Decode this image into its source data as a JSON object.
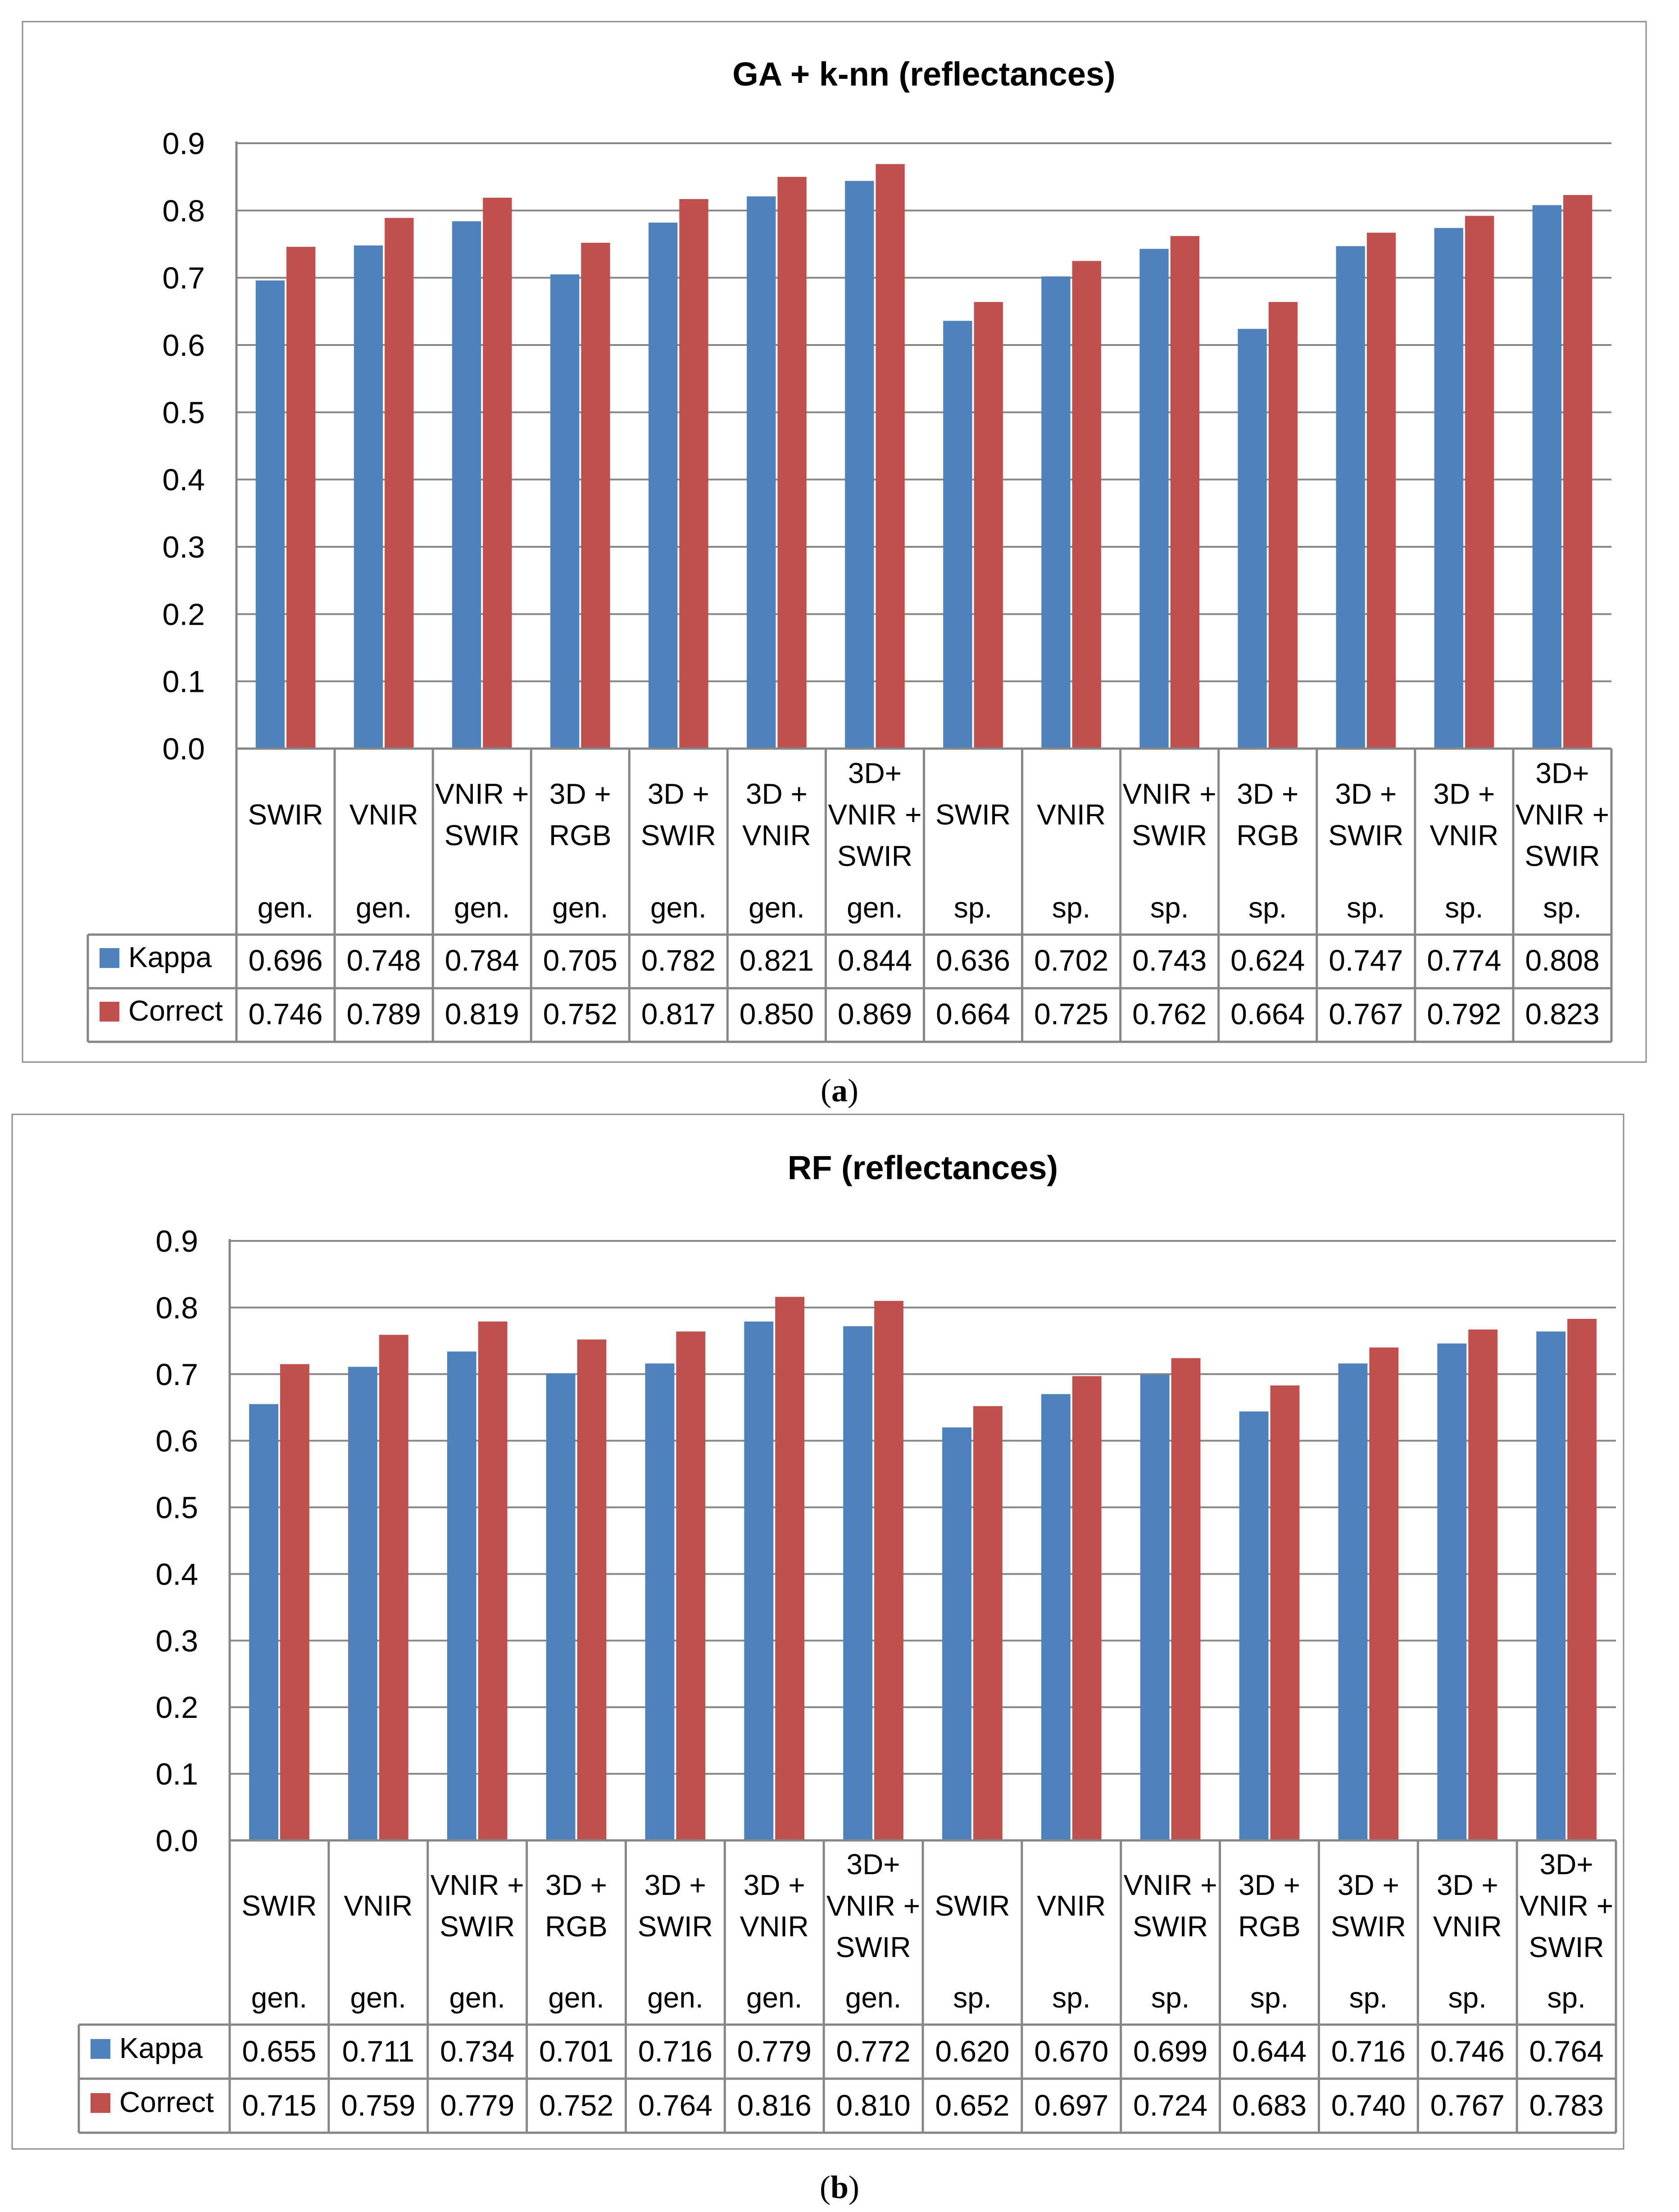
{
  "chart_data": [
    {
      "type": "bar",
      "panel_label": "a",
      "title": "GA + k-nn (reflectances)",
      "ylim": [
        0,
        0.9
      ],
      "yticks": [
        "0.0",
        "0.1",
        "0.2",
        "0.3",
        "0.4",
        "0.5",
        "0.6",
        "0.7",
        "0.8",
        "0.9"
      ],
      "grid": true,
      "categories": [
        {
          "lines": [
            "SWIR"
          ],
          "group": "gen."
        },
        {
          "lines": [
            "VNIR"
          ],
          "group": "gen."
        },
        {
          "lines": [
            "VNIR +",
            "SWIR"
          ],
          "group": "gen."
        },
        {
          "lines": [
            "3D +",
            "RGB"
          ],
          "group": "gen."
        },
        {
          "lines": [
            "3D +",
            "SWIR"
          ],
          "group": "gen."
        },
        {
          "lines": [
            "3D +",
            "VNIR"
          ],
          "group": "gen."
        },
        {
          "lines": [
            "3D+",
            "VNIR +",
            "SWIR"
          ],
          "group": "gen."
        },
        {
          "lines": [
            "SWIR"
          ],
          "group": "sp."
        },
        {
          "lines": [
            "VNIR"
          ],
          "group": "sp."
        },
        {
          "lines": [
            "VNIR +",
            "SWIR"
          ],
          "group": "sp."
        },
        {
          "lines": [
            "3D +",
            "RGB"
          ],
          "group": "sp."
        },
        {
          "lines": [
            "3D +",
            "SWIR"
          ],
          "group": "sp."
        },
        {
          "lines": [
            "3D +",
            "VNIR"
          ],
          "group": "sp."
        },
        {
          "lines": [
            "3D+",
            "VNIR +",
            "SWIR"
          ],
          "group": "sp."
        }
      ],
      "series": [
        {
          "name": "Kappa",
          "color": "#4f81bd",
          "values": [
            0.696,
            0.748,
            0.784,
            0.705,
            0.782,
            0.821,
            0.844,
            0.636,
            0.702,
            0.743,
            0.624,
            0.747,
            0.774,
            0.808
          ],
          "labels": [
            "0.696",
            "0.748",
            "0.784",
            "0.705",
            "0.782",
            "0.821",
            "0.844",
            "0.636",
            "0.702",
            "0.743",
            "0.624",
            "0.747",
            "0.774",
            "0.808"
          ]
        },
        {
          "name": "Correct",
          "color": "#c0504d",
          "values": [
            0.746,
            0.789,
            0.819,
            0.752,
            0.817,
            0.85,
            0.869,
            0.664,
            0.725,
            0.762,
            0.664,
            0.767,
            0.792,
            0.823
          ],
          "labels": [
            "0.746",
            "0.789",
            "0.819",
            "0.752",
            "0.817",
            "0.850",
            "0.869",
            "0.664",
            "0.725",
            "0.762",
            "0.664",
            "0.767",
            "0.792",
            "0.823"
          ]
        }
      ]
    },
    {
      "type": "bar",
      "panel_label": "b",
      "title": "RF (reflectances)",
      "ylim": [
        0,
        0.9
      ],
      "yticks": [
        "0.0",
        "0.1",
        "0.2",
        "0.3",
        "0.4",
        "0.5",
        "0.6",
        "0.7",
        "0.8",
        "0.9"
      ],
      "grid": true,
      "categories": [
        {
          "lines": [
            "SWIR"
          ],
          "group": "gen."
        },
        {
          "lines": [
            "VNIR"
          ],
          "group": "gen."
        },
        {
          "lines": [
            "VNIR +",
            "SWIR"
          ],
          "group": "gen."
        },
        {
          "lines": [
            "3D +",
            "RGB"
          ],
          "group": "gen."
        },
        {
          "lines": [
            "3D +",
            "SWIR"
          ],
          "group": "gen."
        },
        {
          "lines": [
            "3D +",
            "VNIR"
          ],
          "group": "gen."
        },
        {
          "lines": [
            "3D+",
            "VNIR +",
            "SWIR"
          ],
          "group": "gen."
        },
        {
          "lines": [
            "SWIR"
          ],
          "group": "sp."
        },
        {
          "lines": [
            "VNIR"
          ],
          "group": "sp."
        },
        {
          "lines": [
            "VNIR +",
            "SWIR"
          ],
          "group": "sp."
        },
        {
          "lines": [
            "3D +",
            "RGB"
          ],
          "group": "sp."
        },
        {
          "lines": [
            "3D +",
            "SWIR"
          ],
          "group": "sp."
        },
        {
          "lines": [
            "3D +",
            "VNIR"
          ],
          "group": "sp."
        },
        {
          "lines": [
            "3D+",
            "VNIR +",
            "SWIR"
          ],
          "group": "sp."
        }
      ],
      "series": [
        {
          "name": "Kappa",
          "color": "#4f81bd",
          "values": [
            0.655,
            0.711,
            0.734,
            0.701,
            0.716,
            0.779,
            0.772,
            0.62,
            0.67,
            0.699,
            0.644,
            0.716,
            0.746,
            0.764
          ],
          "labels": [
            "0.655",
            "0.711",
            "0.734",
            "0.701",
            "0.716",
            "0.779",
            "0.772",
            "0.620",
            "0.670",
            "0.699",
            "0.644",
            "0.716",
            "0.746",
            "0.764"
          ]
        },
        {
          "name": "Correct",
          "color": "#c0504d",
          "values": [
            0.715,
            0.759,
            0.779,
            0.752,
            0.764,
            0.816,
            0.81,
            0.652,
            0.697,
            0.724,
            0.683,
            0.74,
            0.767,
            0.783
          ],
          "labels": [
            "0.715",
            "0.759",
            "0.779",
            "0.752",
            "0.764",
            "0.816",
            "0.810",
            "0.652",
            "0.697",
            "0.724",
            "0.683",
            "0.740",
            "0.767",
            "0.783"
          ]
        }
      ]
    }
  ]
}
